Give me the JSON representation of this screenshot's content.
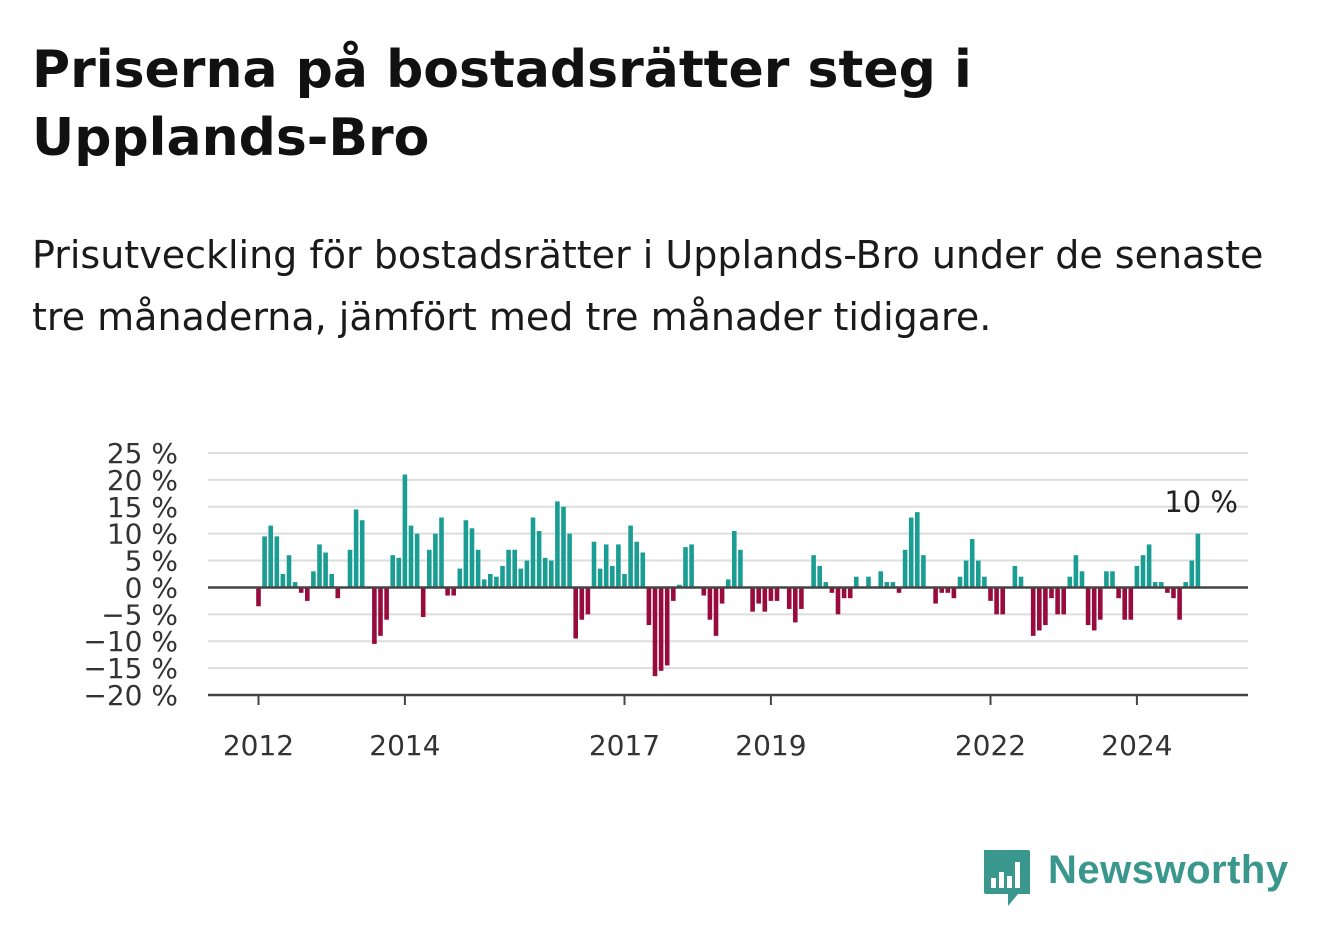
{
  "header": {
    "title": "Priserna på bostadsrätter steg i Upplands-Bro",
    "subtitle": "Prisutveckling för bostadsrätter i Upplands-Bro under de senaste tre månaderna, jämfört med tre månader tidigare."
  },
  "brand": {
    "name": "Newsworthy",
    "color": "#3a978d",
    "icon": "bar-chart-speech-bubble-icon"
  },
  "colors": {
    "positive": "#1a9e93",
    "negative": "#990a3d",
    "grid": "#dddddd",
    "axis": "#444444"
  },
  "chart_data": {
    "type": "bar",
    "title": "",
    "xlabel": "",
    "ylabel": "",
    "ylim": [
      -20,
      25
    ],
    "y_ticks": [
      -20,
      -15,
      -10,
      -5,
      0,
      5,
      10,
      15,
      20,
      25
    ],
    "y_tick_labels": [
      "−20 %",
      "−15 %",
      "−10 %",
      "−5 %",
      "0 %",
      "5 %",
      "10 %",
      "15 %",
      "20 %",
      "25 %"
    ],
    "x_ticks": [
      "2012",
      "2014",
      "2017",
      "2019",
      "2022",
      "2024"
    ],
    "x_tick_positions": [
      2012.0,
      2014.0,
      2017.0,
      2019.0,
      2022.0,
      2024.0
    ],
    "start": 2012.0,
    "step_months": 1,
    "grid": true,
    "annotation": {
      "text": "10 %",
      "value": 10
    },
    "values": [
      -3.5,
      9.5,
      11.5,
      9.5,
      2.5,
      6,
      1,
      -1,
      -2.5,
      3,
      8,
      6.5,
      2.5,
      -2,
      0,
      7,
      14.5,
      12.5,
      0,
      -10.5,
      -9,
      -6,
      6,
      5.5,
      21,
      11.5,
      10,
      -5.5,
      7,
      10,
      13,
      -1.5,
      -1.5,
      3.5,
      12.5,
      11,
      7,
      1.5,
      2.5,
      2,
      4,
      7,
      7,
      3.5,
      5,
      13,
      10.5,
      5.5,
      5,
      16,
      15,
      10,
      -9.5,
      -6,
      -5,
      8.5,
      3.5,
      8,
      4,
      8,
      2.5,
      11.5,
      8.5,
      6.5,
      -7,
      -16.5,
      -15.5,
      -14.5,
      -2.5,
      0.5,
      7.5,
      8,
      0,
      -1.5,
      -6,
      -9,
      -3,
      1.5,
      10.5,
      7,
      0,
      -4.5,
      -3,
      -4.5,
      -2.5,
      -2.5,
      0,
      -4,
      -6.5,
      -4,
      0,
      6,
      4,
      1,
      -1,
      -5,
      -2,
      -2,
      2,
      0,
      2,
      0,
      3,
      1,
      1,
      -1,
      7,
      13,
      14,
      6,
      0,
      -3,
      -1,
      -1,
      -2,
      2,
      5,
      9,
      5,
      2,
      -2.5,
      -5,
      -5,
      0,
      4,
      2,
      0,
      -9,
      -8,
      -7,
      -2,
      -5,
      -5,
      2,
      6,
      3,
      -7,
      -8,
      -6,
      3,
      3,
      -2,
      -6,
      -6,
      4,
      6,
      8,
      1,
      1,
      -1,
      -2,
      -6,
      1,
      5,
      10
    ]
  }
}
